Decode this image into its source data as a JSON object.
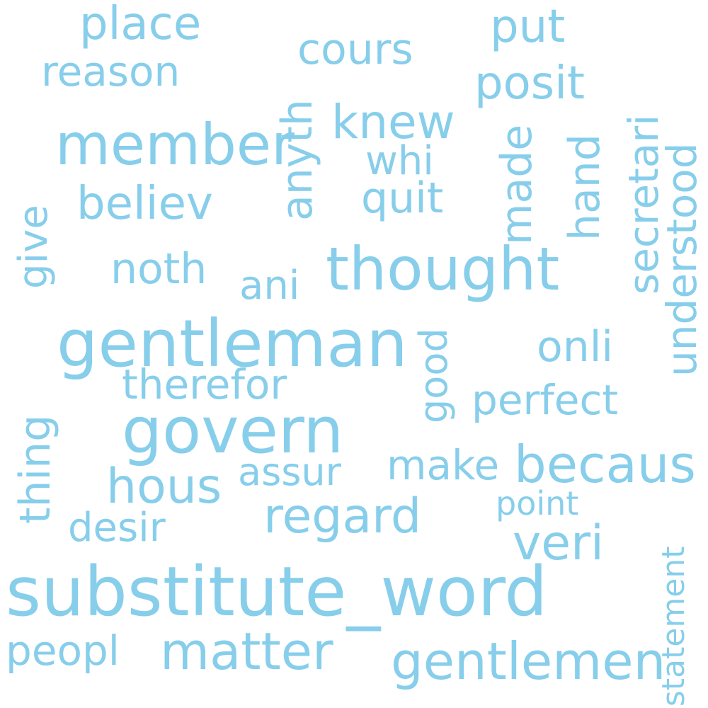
{
  "colors": {
    "word": "#87CEEB",
    "background": "#FFFFFF"
  },
  "words": {
    "substitute_word": "substitute_word",
    "gentleman": "gentleman",
    "govern": "govern",
    "thought": "thought",
    "member": "member",
    "gentlemen": "gentlemen",
    "matter": "matter",
    "becaus": "becaus",
    "regard": "regard",
    "veri": "veri",
    "hous": "hous",
    "believ": "believ",
    "knew": "knew",
    "place": "place",
    "put": "put",
    "posit": "posit",
    "reason": "reason",
    "cours": "cours",
    "noth": "noth",
    "therefor": "therefor",
    "perfect": "perfect",
    "make": "make",
    "assur": "assur",
    "onli": "onli",
    "quit": "quit",
    "whi": "whi",
    "desir": "desir",
    "peopl": "peopl",
    "ani": "ani",
    "point": "point",
    "anyth": "anyth",
    "made": "made",
    "hand": "hand",
    "secretari": "secretari",
    "understood": "understood",
    "good": "good",
    "give": "give",
    "thing": "thing",
    "statement": "statement"
  }
}
